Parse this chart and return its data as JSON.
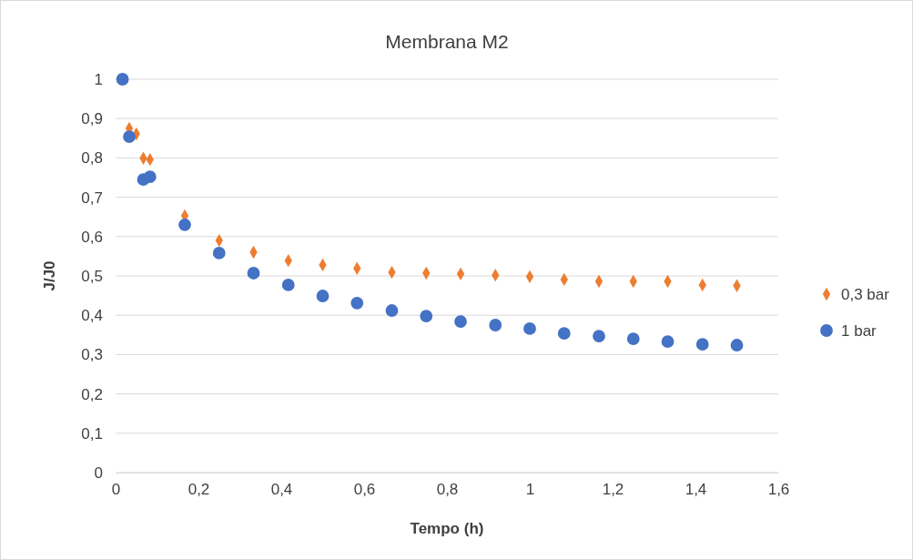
{
  "chart_data": {
    "type": "scatter",
    "title": "Membrana M2",
    "xlabel": "Tempo (h)",
    "ylabel": "J/J0",
    "xlim": [
      0,
      1.6
    ],
    "ylim": [
      0,
      1
    ],
    "xticks": [
      {
        "value": 0,
        "label": "0"
      },
      {
        "value": 0.2,
        "label": "0,2"
      },
      {
        "value": 0.4,
        "label": "0,4"
      },
      {
        "value": 0.6,
        "label": "0,6"
      },
      {
        "value": 0.8,
        "label": "0,8"
      },
      {
        "value": 1,
        "label": "1"
      },
      {
        "value": 1.2,
        "label": "1,2"
      },
      {
        "value": 1.4,
        "label": "1,4"
      },
      {
        "value": 1.6,
        "label": "1,6"
      }
    ],
    "yticks": [
      {
        "value": 0,
        "label": "0"
      },
      {
        "value": 0.1,
        "label": "0,1"
      },
      {
        "value": 0.2,
        "label": "0,2"
      },
      {
        "value": 0.3,
        "label": "0,3"
      },
      {
        "value": 0.4,
        "label": "0,4"
      },
      {
        "value": 0.5,
        "label": "0,5"
      },
      {
        "value": 0.6,
        "label": "0,6"
      },
      {
        "value": 0.7,
        "label": "0,7"
      },
      {
        "value": 0.8,
        "label": "0,8"
      },
      {
        "value": 0.9,
        "label": "0,9"
      },
      {
        "value": 1,
        "label": "1"
      }
    ],
    "grid": "y",
    "legend": "right",
    "series": [
      {
        "name": "0,3 bar",
        "color": "#ed7d31",
        "marker": "diamond",
        "x": [
          0.033,
          0.05,
          0.067,
          0.083,
          0.167,
          0.25,
          0.333,
          0.417,
          0.5,
          0.583,
          0.667,
          0.75,
          0.833,
          0.917,
          1.0,
          1.083,
          1.167,
          1.25,
          1.333,
          1.417,
          1.5
        ],
        "values": [
          0.875,
          0.861,
          0.799,
          0.796,
          0.653,
          0.59,
          0.56,
          0.539,
          0.528,
          0.519,
          0.509,
          0.507,
          0.505,
          0.502,
          0.498,
          0.491,
          0.486,
          0.486,
          0.486,
          0.477,
          0.475
        ]
      },
      {
        "name": "1 bar",
        "color": "#4472c4",
        "marker": "circle",
        "x": [
          0.0167,
          0.033,
          0.067,
          0.083,
          0.167,
          0.25,
          0.333,
          0.417,
          0.5,
          0.583,
          0.667,
          0.75,
          0.833,
          0.917,
          1.0,
          1.083,
          1.167,
          1.25,
          1.333,
          1.417,
          1.5
        ],
        "values": [
          1,
          0.854,
          0.745,
          0.752,
          0.63,
          0.558,
          0.507,
          0.477,
          0.449,
          0.431,
          0.412,
          0.398,
          0.384,
          0.375,
          0.366,
          0.354,
          0.347,
          0.34,
          0.333,
          0.326,
          0.324
        ]
      }
    ]
  }
}
